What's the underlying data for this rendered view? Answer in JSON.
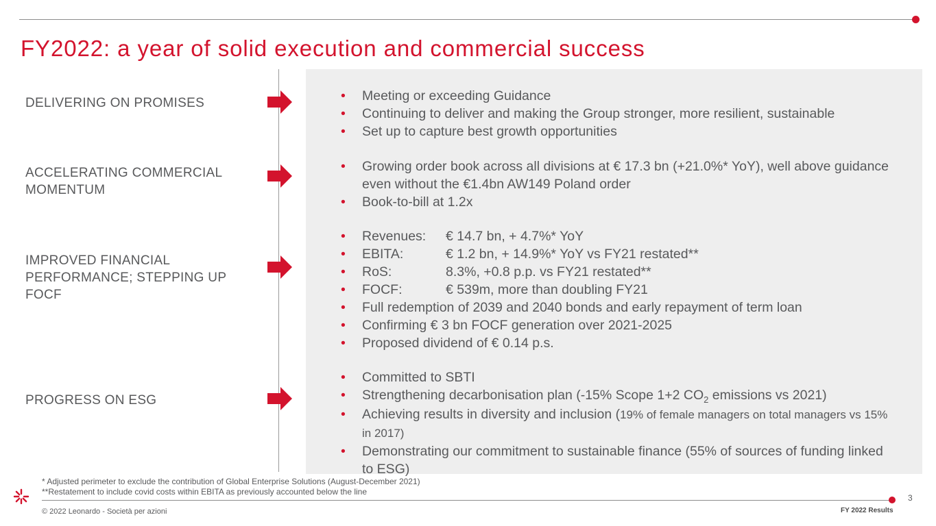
{
  "title": "FY2022: a year of solid execution and commercial success",
  "sections": [
    {
      "label": "DELIVERING ON PROMISES"
    },
    {
      "label": "ACCELERATING COMMERCIAL MOMENTUM"
    },
    {
      "label": "IMPROVED FINANCIAL PERFORMANCE; STEPPING UP FOCF"
    },
    {
      "label": "PROGRESS ON ESG"
    }
  ],
  "bullet_marker": "•",
  "promises": [
    "Meeting or exceeding Guidance",
    "Continuing to deliver and making the Group stronger, more resilient, sustainable",
    "Set up to capture best growth opportunities"
  ],
  "commercial": [
    "Growing order book across all divisions at € 17.3 bn (+21.0%* YoY), well above guidance even without the €1.4bn AW149 Poland order",
    "Book-to-bill at 1.2x"
  ],
  "financial_metrics": [
    {
      "key": "Revenues:",
      "value": "€ 14.7 bn, + 4.7%* YoY"
    },
    {
      "key": "EBITA:",
      "value": "€ 1.2 bn, + 14.9%* YoY vs FY21 restated**"
    },
    {
      "key": "RoS:",
      "value": "8.3%, +0.8 p.p. vs FY21 restated**"
    },
    {
      "key": "FOCF:",
      "value": "€ 539m, more than doubling FY21"
    }
  ],
  "financial_other": [
    "Full redemption of 2039 and 2040 bonds and early repayment of term loan",
    "Confirming € 3 bn FOCF generation over 2021-2025",
    "Proposed dividend of € 0.14 p.s."
  ],
  "esg": {
    "sbti": "Committed to SBTI",
    "decarb_before": "Strengthening decarbonisation plan (-15% Scope 1+2 CO",
    "decarb_sub": "2",
    "decarb_after": " emissions vs 2021)",
    "diversity_main": "Achieving results in diversity and inclusion (",
    "diversity_detail": "19% of female managers on total managers vs 15% in 2017)",
    "finance": "Demonstrating our commitment to sustainable finance (55% of sources of funding linked to ESG)"
  },
  "footnotes": [
    "* Adjusted perimeter to exclude the contribution of Global Enterprise Solutions (August-December 2021)",
    "**Restatement to include covid costs  within EBITA as previously accounted below the line"
  ],
  "page_number": "3",
  "copyright": "© 2022 Leonardo - Società per azioni",
  "report_label": "FY 2022 Results",
  "colors": {
    "accent": "#d3132d",
    "text": "#58595b",
    "panel": "#eeeeee"
  },
  "icons": [
    "arrow-right-icon",
    "leonardo-logo-icon"
  ]
}
